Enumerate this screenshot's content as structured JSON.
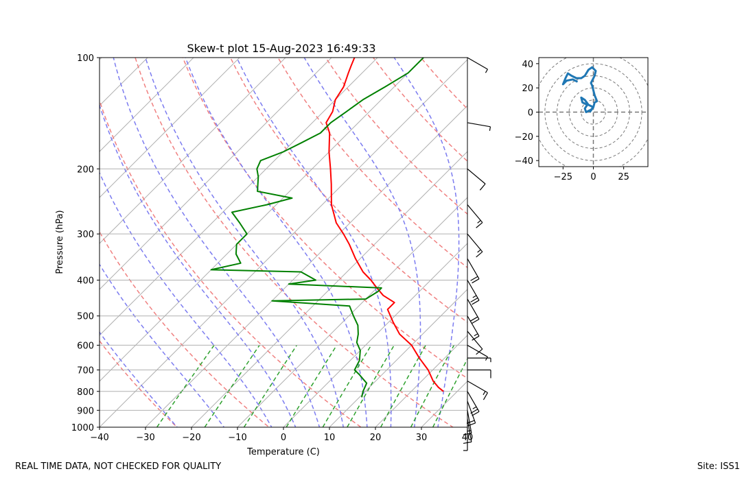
{
  "footer": {
    "left_text": "REAL TIME DATA, NOT CHECKED FOR QUALITY",
    "right_text": "Site: ISS1"
  },
  "colors": {
    "temperature": "#ff0000",
    "dewpoint": "#008000",
    "dry_adiabat": "#f08080",
    "moist_adiabat": "#7b7bf0",
    "mixing_ratio": "#2ca02c",
    "isotherm": "#b0b0b0",
    "hodograph": "#1f77b4",
    "wind_barb": "#000000"
  },
  "chart_data": [
    {
      "type": "line",
      "name": "skew-t",
      "title": "Skew-t plot 15-Aug-2023 16:49:33",
      "xlabel": "Temperature (C)",
      "ylabel": "Pressure (hPa)",
      "xlim": [
        -40,
        40
      ],
      "ylim": [
        1000,
        100
      ],
      "yscale": "log",
      "skew": true,
      "grid": true,
      "xticks": [
        -40,
        -30,
        -20,
        -10,
        0,
        10,
        20,
        30,
        40
      ],
      "xtick_labels": [
        "−40",
        "−30",
        "−20",
        "−10",
        "0",
        "10",
        "20",
        "30",
        "40"
      ],
      "yticks": [
        1000,
        900,
        800,
        700,
        600,
        500,
        400,
        300,
        200,
        100
      ],
      "ytick_labels": [
        "1000",
        "900",
        "800",
        "700",
        "600",
        "500",
        "400",
        "300",
        "200",
        "100"
      ],
      "series": [
        {
          "role": "temperature",
          "points": [
            [
              800,
              27
            ],
            [
              780,
              25
            ],
            [
              750,
              22.5
            ],
            [
              700,
              19
            ],
            [
              650,
              14.5
            ],
            [
              600,
              10
            ],
            [
              560,
              5
            ],
            [
              520,
              1
            ],
            [
              480,
              -3
            ],
            [
              460,
              -3
            ],
            [
              440,
              -7
            ],
            [
              420,
              -10
            ],
            [
              400,
              -13
            ],
            [
              380,
              -16.5
            ],
            [
              350,
              -21
            ],
            [
              320,
              -25.5
            ],
            [
              300,
              -29
            ],
            [
              280,
              -33
            ],
            [
              250,
              -38
            ],
            [
              220,
              -42.5
            ],
            [
              200,
              -46
            ],
            [
              180,
              -50
            ],
            [
              160,
              -54
            ],
            [
              150,
              -57
            ],
            [
              140,
              -58
            ],
            [
              130,
              -60
            ],
            [
              120,
              -61
            ],
            [
              110,
              -63
            ],
            [
              105,
              -64
            ],
            [
              100,
              -65
            ]
          ]
        },
        {
          "role": "dewpoint",
          "points": [
            [
              830,
              10.5
            ],
            [
              800,
              9.5
            ],
            [
              760,
              8.5
            ],
            [
              720,
              5
            ],
            [
              700,
              3
            ],
            [
              660,
              2
            ],
            [
              620,
              0
            ],
            [
              590,
              -2.5
            ],
            [
              560,
              -4
            ],
            [
              530,
              -6
            ],
            [
              500,
              -9
            ],
            [
              470,
              -12
            ],
            [
              455,
              -30
            ],
            [
              450,
              -10
            ],
            [
              430,
              -9
            ],
            [
              420,
              -9
            ],
            [
              410,
              -30
            ],
            [
              400,
              -25
            ],
            [
              380,
              -30
            ],
            [
              375,
              -50
            ],
            [
              360,
              -45
            ],
            [
              340,
              -48
            ],
            [
              320,
              -50
            ],
            [
              300,
              -50
            ],
            [
              280,
              -54
            ],
            [
              262,
              -58
            ],
            [
              250,
              -52
            ],
            [
              240,
              -48
            ],
            [
              230,
              -57
            ],
            [
              210,
              -60
            ],
            [
              200,
              -62
            ],
            [
              190,
              -63
            ],
            [
              180,
              -60
            ],
            [
              170,
              -58
            ],
            [
              160,
              -56
            ],
            [
              150,
              -56
            ],
            [
              140,
              -55
            ],
            [
              130,
              -54
            ],
            [
              120,
              -52
            ],
            [
              110,
              -50
            ],
            [
              100,
              -50
            ]
          ]
        }
      ],
      "reference_lines": {
        "dry_adiabats_theta_k": [
          250,
          270,
          290,
          310,
          330,
          350,
          370,
          390,
          410,
          430,
          450
        ],
        "moist_adiabats_start_c": [
          -20,
          -10,
          0,
          5,
          10,
          15,
          20,
          25,
          30,
          35
        ],
        "mixing_ratios_g_per_kg": [
          0.4,
          1,
          2,
          4,
          7,
          10,
          16,
          24,
          32
        ]
      },
      "wind_profile": {
        "units": "knots",
        "levels": [
          {
            "p": 1000,
            "spd": 5,
            "dir": 180
          },
          {
            "p": 950,
            "spd": 10,
            "dir": 170
          },
          {
            "p": 900,
            "spd": 15,
            "dir": 170
          },
          {
            "p": 850,
            "spd": 20,
            "dir": 160
          },
          {
            "p": 800,
            "spd": 25,
            "dir": 150
          },
          {
            "p": 750,
            "spd": 15,
            "dir": 120
          },
          {
            "p": 700,
            "spd": 10,
            "dir": 90
          },
          {
            "p": 650,
            "spd": 5,
            "dir": 90
          },
          {
            "p": 600,
            "spd": 5,
            "dir": 120
          },
          {
            "p": 550,
            "spd": 10,
            "dir": 140
          },
          {
            "p": 500,
            "spd": 15,
            "dir": 150
          },
          {
            "p": 450,
            "spd": 20,
            "dir": 150
          },
          {
            "p": 400,
            "spd": 25,
            "dir": 150
          },
          {
            "p": 350,
            "spd": 20,
            "dir": 150
          },
          {
            "p": 300,
            "spd": 15,
            "dir": 140
          },
          {
            "p": 250,
            "spd": 15,
            "dir": 140
          },
          {
            "p": 200,
            "spd": 10,
            "dir": 130
          },
          {
            "p": 150,
            "spd": 5,
            "dir": 100
          },
          {
            "p": 100,
            "spd": 5,
            "dir": 120
          }
        ]
      }
    },
    {
      "type": "line",
      "name": "hodograph",
      "xlim": [
        -45,
        45
      ],
      "ylim": [
        -45,
        45
      ],
      "xticks": [
        -25,
        0,
        25
      ],
      "xtick_labels": [
        "−25",
        "0",
        "25"
      ],
      "yticks": [
        40,
        20,
        0,
        -20,
        -40
      ],
      "ytick_labels": [
        "40",
        "20",
        "0",
        "−20",
        "−40"
      ],
      "rings": [
        10,
        20,
        30,
        40,
        50
      ],
      "points": [
        [
          -3,
          0
        ],
        [
          0,
          4
        ],
        [
          -2,
          2
        ],
        [
          -6,
          0
        ],
        [
          -7,
          3
        ],
        [
          -5,
          6
        ],
        [
          -9,
          8
        ],
        [
          -10,
          12
        ],
        [
          -7,
          10
        ],
        [
          -4,
          6
        ],
        [
          0,
          4
        ],
        [
          1,
          8
        ],
        [
          3,
          9
        ],
        [
          1,
          14
        ],
        [
          0,
          18
        ],
        [
          -1,
          22
        ],
        [
          -2,
          24
        ],
        [
          1,
          30
        ],
        [
          2,
          34
        ],
        [
          -1,
          37
        ],
        [
          -4,
          35
        ],
        [
          -7,
          30
        ],
        [
          -10,
          28
        ],
        [
          -14,
          28
        ],
        [
          -18,
          30
        ],
        [
          -21,
          32
        ],
        [
          -23,
          28
        ],
        [
          -25,
          23
        ],
        [
          -22,
          26
        ],
        [
          -17,
          27
        ],
        [
          -13,
          25
        ]
      ]
    }
  ]
}
